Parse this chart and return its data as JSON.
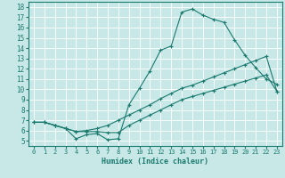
{
  "xlabel": "Humidex (Indice chaleur)",
  "bg_color": "#c8e8e8",
  "grid_color": "#ffffff",
  "line_color": "#1a7a6e",
  "xlim": [
    -0.5,
    23.5
  ],
  "ylim": [
    4.5,
    18.5
  ],
  "xticks": [
    0,
    1,
    2,
    3,
    4,
    5,
    6,
    7,
    8,
    9,
    10,
    11,
    12,
    13,
    14,
    15,
    16,
    17,
    18,
    19,
    20,
    21,
    22,
    23
  ],
  "yticks": [
    5,
    6,
    7,
    8,
    9,
    10,
    11,
    12,
    13,
    14,
    15,
    16,
    17,
    18
  ],
  "line1_x": [
    0,
    1,
    2,
    3,
    4,
    5,
    6,
    7,
    8,
    9,
    10,
    11,
    12,
    13,
    14,
    15,
    16,
    17,
    18,
    19,
    20,
    21,
    22,
    23
  ],
  "line1_y": [
    6.8,
    6.8,
    6.5,
    6.2,
    5.2,
    5.6,
    5.7,
    5.1,
    5.2,
    8.5,
    10.1,
    11.8,
    13.8,
    14.2,
    17.5,
    17.8,
    17.2,
    16.8,
    16.5,
    14.8,
    13.3,
    12.1,
    11.0,
    10.5
  ],
  "line2_x": [
    0,
    1,
    2,
    3,
    4,
    5,
    6,
    7,
    8,
    9,
    10,
    11,
    12,
    13,
    14,
    15,
    16,
    17,
    18,
    19,
    20,
    21,
    22,
    23
  ],
  "line2_y": [
    6.8,
    6.8,
    6.5,
    6.2,
    5.9,
    6.0,
    6.2,
    6.5,
    7.0,
    7.5,
    8.0,
    8.5,
    9.1,
    9.6,
    10.1,
    10.4,
    10.8,
    11.2,
    11.6,
    12.0,
    12.4,
    12.8,
    13.2,
    9.8
  ],
  "line3_x": [
    0,
    1,
    2,
    3,
    4,
    5,
    6,
    7,
    8,
    9,
    10,
    11,
    12,
    13,
    14,
    15,
    16,
    17,
    18,
    19,
    20,
    21,
    22,
    23
  ],
  "line3_y": [
    6.8,
    6.8,
    6.5,
    6.2,
    5.9,
    5.9,
    5.9,
    5.8,
    5.8,
    6.5,
    7.0,
    7.5,
    8.0,
    8.5,
    9.0,
    9.3,
    9.6,
    9.9,
    10.2,
    10.5,
    10.8,
    11.1,
    11.4,
    9.8
  ]
}
